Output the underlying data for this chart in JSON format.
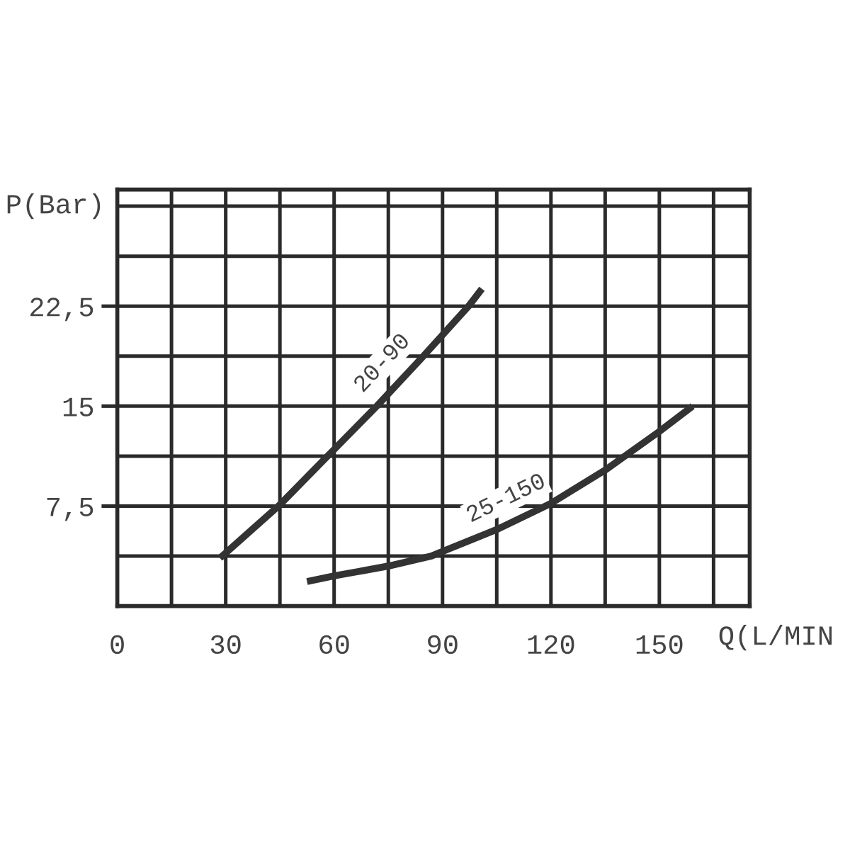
{
  "chart_data": {
    "type": "line",
    "xlabel": "Q(L/MIN",
    "ylabel": "P(Bar)",
    "xlim": [
      0,
      175
    ],
    "ylim": [
      0,
      31.25
    ],
    "xticks": [
      0,
      {
        "value": 15,
        "label": null
      },
      30,
      {
        "value": 45,
        "label": null
      },
      60,
      {
        "value": 75,
        "label": null
      },
      90,
      {
        "value": 105,
        "label": null
      },
      120,
      {
        "value": 135,
        "label": null
      },
      150,
      {
        "value": 165,
        "label": null
      }
    ],
    "yticks": [
      {
        "value": 3.75,
        "label": null
      },
      {
        "value": 7.5,
        "label": "7,5"
      },
      {
        "value": 11.25,
        "label": null
      },
      15,
      {
        "value": 18.75,
        "label": null
      },
      {
        "value": 22.5,
        "label": "22,5"
      },
      {
        "value": 26.25,
        "label": null
      },
      {
        "value": 30,
        "label": null
      }
    ],
    "grid": true,
    "legend": false,
    "marker": "none",
    "line_style": "solid",
    "series": [
      {
        "name": "20-90",
        "color": "#333333",
        "x": [
          28.4,
          44.6,
          58.2,
          71.8,
          84.7,
          97.2,
          100.9
        ],
        "values": [
          3.6,
          7.5,
          11.25,
          15,
          18.75,
          22.5,
          23.8
        ]
      },
      {
        "name": "25-150",
        "color": "#333333",
        "x": [
          52.5,
          60,
          75,
          86.9,
          90,
          105,
          120,
          135,
          150,
          159.2
        ],
        "values": [
          1.84,
          2.26,
          3.0,
          3.75,
          4.1,
          5.74,
          7.7,
          10.2,
          13.1,
          15.0
        ]
      }
    ]
  }
}
